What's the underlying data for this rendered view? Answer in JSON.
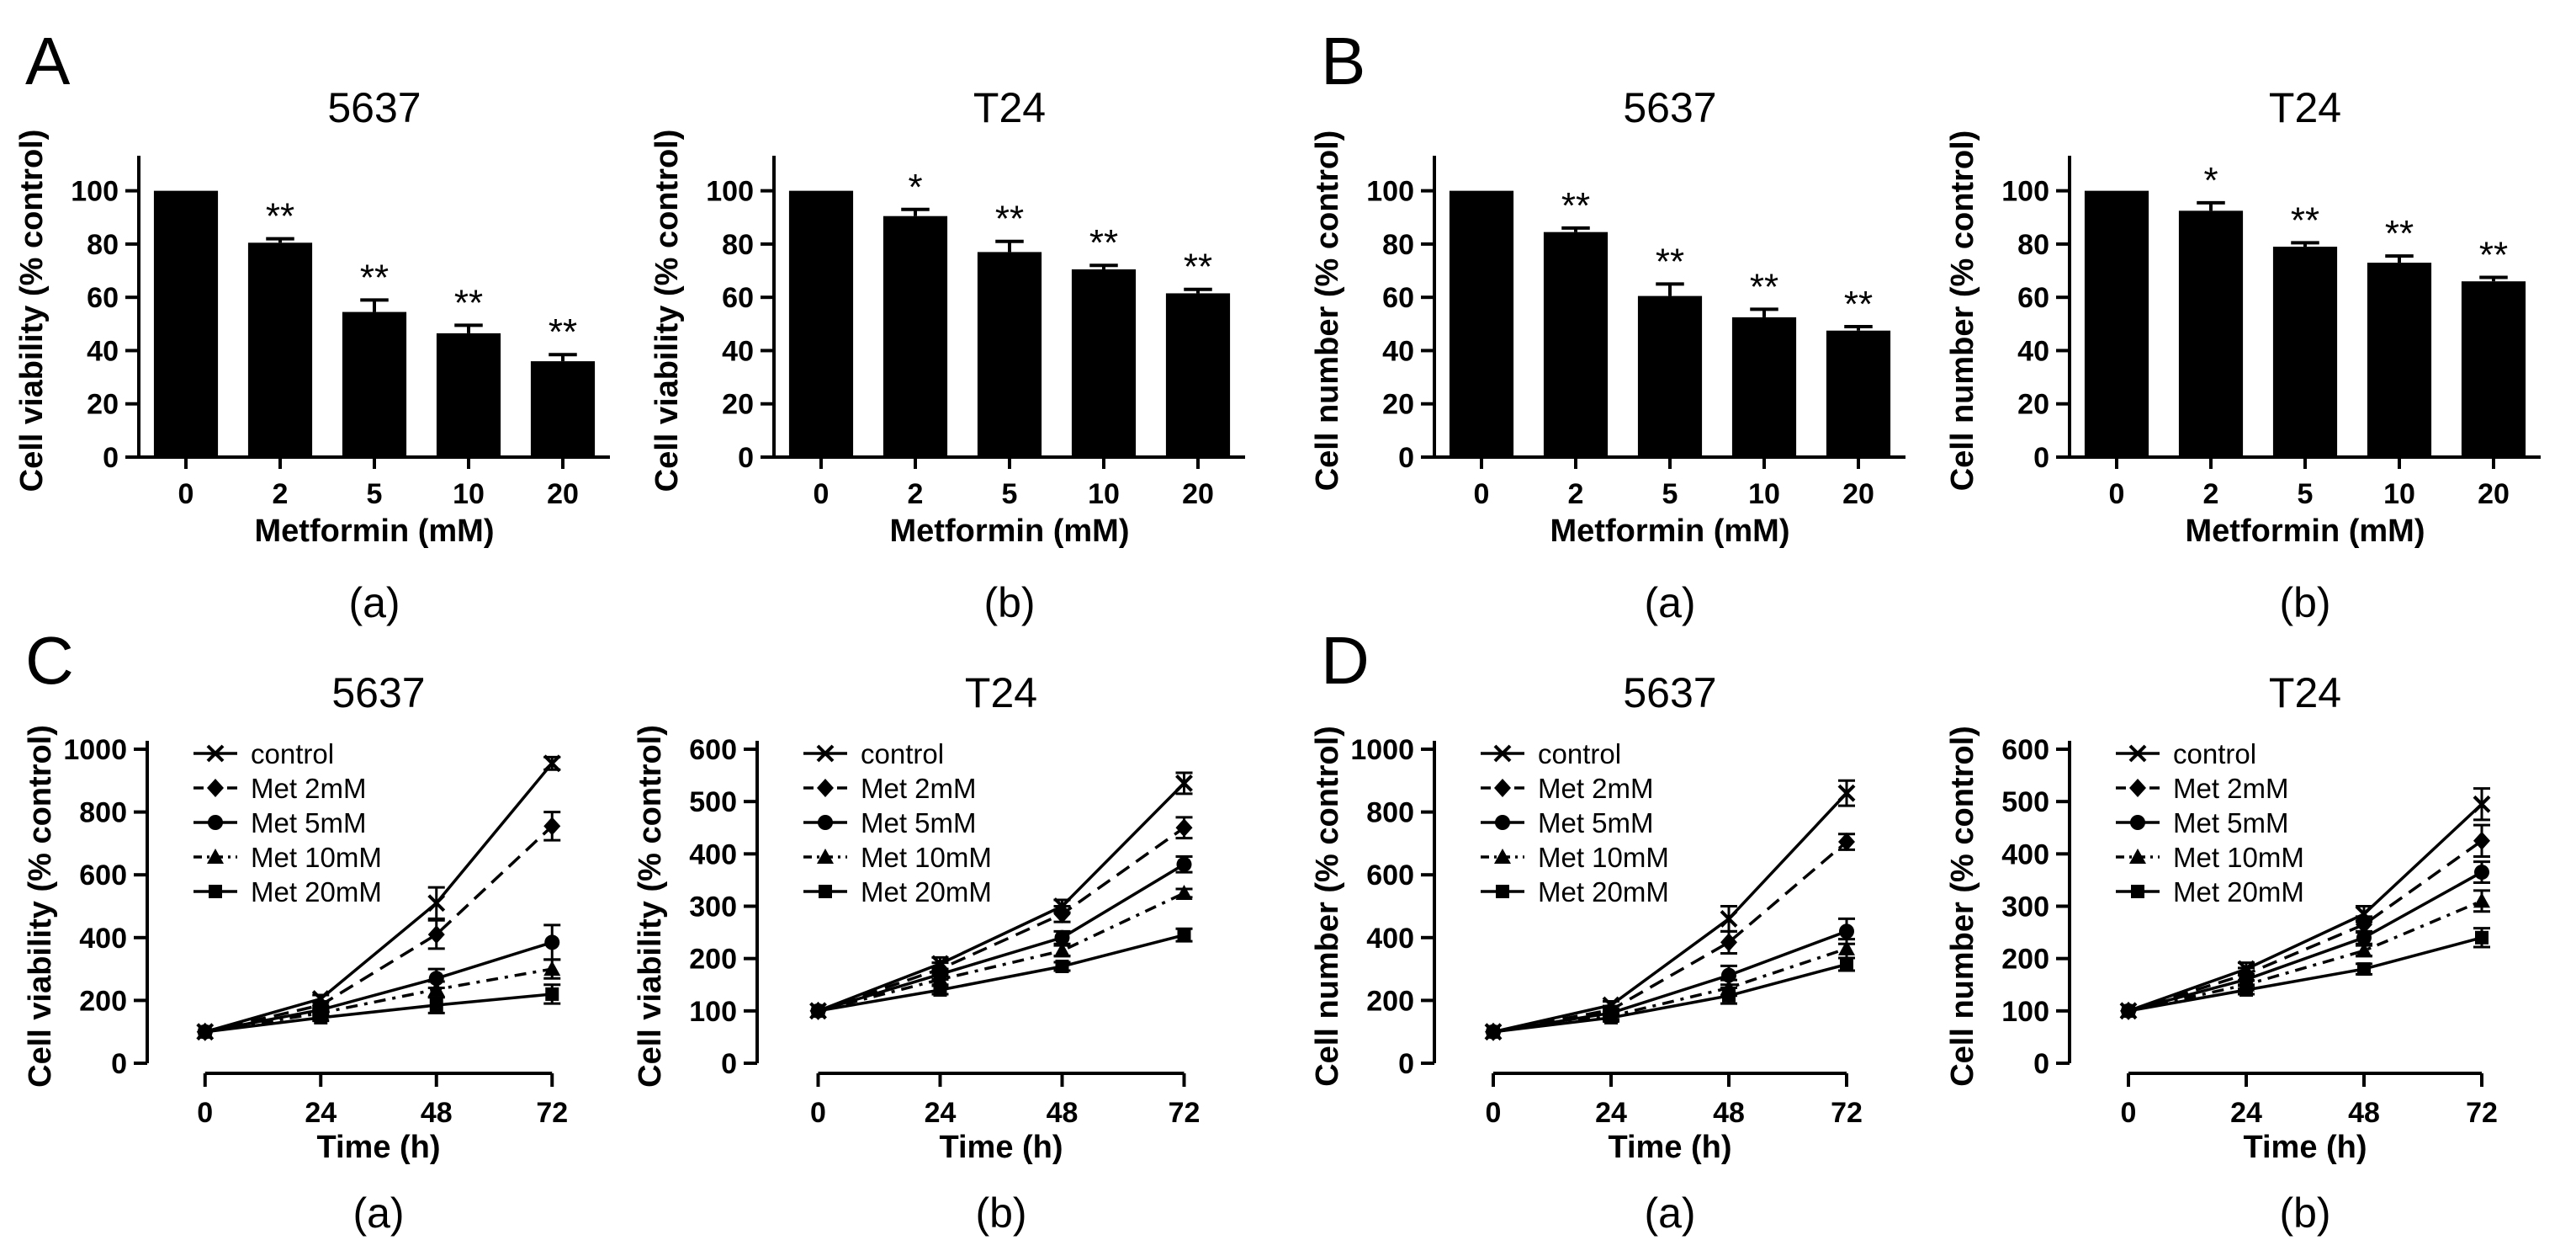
{
  "figure": {
    "panel_letters": [
      "A",
      "B",
      "C",
      "D"
    ],
    "colors": {
      "ink": "#000000",
      "background": "#ffffff"
    }
  },
  "chart_data": [
    {
      "id": "A-a",
      "panel": "A",
      "type": "bar",
      "title": "5637",
      "caption": "(a)",
      "xlabel": "Metformin (mM)",
      "ylabel": "Cell viability (% control)",
      "ylim": [
        0,
        110
      ],
      "yticks": [
        0,
        20,
        40,
        60,
        80,
        100
      ],
      "categories": [
        "0",
        "2",
        "5",
        "10",
        "20"
      ],
      "values": [
        100,
        80.5,
        54.5,
        46.5,
        36
      ],
      "errors": [
        0,
        1.5,
        4.5,
        3,
        2.5
      ],
      "significance": [
        "",
        "**",
        "**",
        "**",
        "**"
      ]
    },
    {
      "id": "A-b",
      "panel": "A",
      "type": "bar",
      "title": "T24",
      "caption": "(b)",
      "xlabel": "Metformin (mM)",
      "ylabel": "Cell viability (% control)",
      "ylim": [
        0,
        110
      ],
      "yticks": [
        0,
        20,
        40,
        60,
        80,
        100
      ],
      "categories": [
        "0",
        "2",
        "5",
        "10",
        "20"
      ],
      "values": [
        100,
        90.5,
        77,
        70.5,
        61.5
      ],
      "errors": [
        0,
        2.5,
        4,
        1.5,
        1.5
      ],
      "significance": [
        "",
        "*",
        "**",
        "**",
        "**"
      ]
    },
    {
      "id": "B-a",
      "panel": "B",
      "type": "bar",
      "title": "5637",
      "caption": "(a)",
      "xlabel": "Metformin (mM)",
      "ylabel": "Cell number (% control)",
      "ylim": [
        0,
        110
      ],
      "yticks": [
        0,
        20,
        40,
        60,
        80,
        100
      ],
      "categories": [
        "0",
        "2",
        "5",
        "10",
        "20"
      ],
      "values": [
        100,
        84.5,
        60.5,
        52.5,
        47.5
      ],
      "errors": [
        0,
        1.5,
        4.5,
        3,
        1.5
      ],
      "significance": [
        "",
        "**",
        "**",
        "**",
        "**"
      ]
    },
    {
      "id": "B-b",
      "panel": "B",
      "type": "bar",
      "title": "T24",
      "caption": "(b)",
      "xlabel": "Metformin (mM)",
      "ylabel": "Cell number (% control)",
      "ylim": [
        0,
        110
      ],
      "yticks": [
        0,
        20,
        40,
        60,
        80,
        100
      ],
      "categories": [
        "0",
        "2",
        "5",
        "10",
        "20"
      ],
      "values": [
        100,
        92.5,
        79,
        73,
        66
      ],
      "errors": [
        0,
        3,
        1.5,
        2.5,
        1.5
      ],
      "significance": [
        "",
        "*",
        "**",
        "**",
        "**"
      ]
    },
    {
      "id": "C-a",
      "panel": "C",
      "type": "line",
      "title": "5637",
      "caption": "(a)",
      "xlabel": "Time (h)",
      "ylabel": "Cell viability (% control)",
      "ylim": [
        0,
        1000
      ],
      "yticks": [
        0,
        200,
        400,
        600,
        800,
        1000
      ],
      "x": [
        0,
        24,
        48,
        72
      ],
      "xlim": [
        -12,
        84
      ],
      "series": [
        {
          "name": "control",
          "marker": "x",
          "dash": "solid",
          "values": [
            100,
            205,
            510,
            955
          ],
          "errors": [
            0,
            12,
            50,
            20
          ]
        },
        {
          "name": "Met 2mM",
          "marker": "diamond",
          "dash": "dashed",
          "values": [
            100,
            185,
            410,
            755
          ],
          "errors": [
            0,
            12,
            45,
            45
          ]
        },
        {
          "name": "Met 5mM",
          "marker": "circle",
          "dash": "solid",
          "values": [
            100,
            170,
            270,
            385
          ],
          "errors": [
            0,
            10,
            30,
            55
          ]
        },
        {
          "name": "Met 10mM",
          "marker": "triangle",
          "dash": "dashdot",
          "values": [
            100,
            160,
            235,
            300
          ],
          "errors": [
            0,
            10,
            25,
            30
          ]
        },
        {
          "name": "Met 20mM",
          "marker": "square",
          "dash": "solid",
          "values": [
            100,
            145,
            185,
            220
          ],
          "errors": [
            0,
            10,
            25,
            30
          ]
        }
      ]
    },
    {
      "id": "C-b",
      "panel": "C",
      "type": "line",
      "title": "T24",
      "caption": "(b)",
      "xlabel": "Time (h)",
      "ylabel": "Cell viability (% control)",
      "ylim": [
        0,
        600
      ],
      "yticks": [
        0,
        100,
        200,
        300,
        400,
        500,
        600
      ],
      "x": [
        0,
        24,
        48,
        72
      ],
      "xlim": [
        -12,
        84
      ],
      "series": [
        {
          "name": "control",
          "marker": "x",
          "dash": "solid",
          "values": [
            100,
            190,
            300,
            535
          ],
          "errors": [
            0,
            12,
            12,
            20
          ]
        },
        {
          "name": "Met 2mM",
          "marker": "diamond",
          "dash": "dashed",
          "values": [
            100,
            180,
            285,
            450
          ],
          "errors": [
            0,
            12,
            15,
            20
          ]
        },
        {
          "name": "Met 5mM",
          "marker": "circle",
          "dash": "solid",
          "values": [
            100,
            170,
            240,
            380
          ],
          "errors": [
            0,
            10,
            12,
            15
          ]
        },
        {
          "name": "Met 10mM",
          "marker": "triangle",
          "dash": "dashdot",
          "values": [
            100,
            160,
            215,
            325
          ],
          "errors": [
            0,
            10,
            10,
            8
          ]
        },
        {
          "name": "Met 20mM",
          "marker": "square",
          "dash": "solid",
          "values": [
            100,
            140,
            185,
            245
          ],
          "errors": [
            0,
            8,
            8,
            12
          ]
        }
      ]
    },
    {
      "id": "D-a",
      "panel": "D",
      "type": "line",
      "title": "5637",
      "caption": "(a)",
      "xlabel": "Time (h)",
      "ylabel": "Cell number (% control)",
      "ylim": [
        0,
        1000
      ],
      "yticks": [
        0,
        200,
        400,
        600,
        800,
        1000
      ],
      "x": [
        0,
        24,
        48,
        72
      ],
      "xlim": [
        -12,
        84
      ],
      "series": [
        {
          "name": "control",
          "marker": "x",
          "dash": "solid",
          "values": [
            100,
            185,
            460,
            860
          ],
          "errors": [
            0,
            12,
            40,
            40
          ]
        },
        {
          "name": "Met 2mM",
          "marker": "diamond",
          "dash": "dashed",
          "values": [
            100,
            170,
            385,
            705
          ],
          "errors": [
            0,
            12,
            35,
            25
          ]
        },
        {
          "name": "Met 5mM",
          "marker": "circle",
          "dash": "solid",
          "values": [
            100,
            160,
            280,
            420
          ],
          "errors": [
            0,
            10,
            30,
            40
          ]
        },
        {
          "name": "Met 10mM",
          "marker": "triangle",
          "dash": "dashdot",
          "values": [
            100,
            150,
            240,
            365
          ],
          "errors": [
            0,
            10,
            25,
            30
          ]
        },
        {
          "name": "Met 20mM",
          "marker": "square",
          "dash": "solid",
          "values": [
            100,
            145,
            215,
            315
          ],
          "errors": [
            0,
            10,
            25,
            20
          ]
        }
      ]
    },
    {
      "id": "D-b",
      "panel": "D",
      "type": "line",
      "title": "T24",
      "caption": "(b)",
      "xlabel": "Time (h)",
      "ylabel": "Cell number (% control)",
      "ylim": [
        0,
        600
      ],
      "yticks": [
        0,
        100,
        200,
        300,
        400,
        500,
        600
      ],
      "x": [
        0,
        24,
        48,
        72
      ],
      "xlim": [
        -12,
        84
      ],
      "series": [
        {
          "name": "control",
          "marker": "x",
          "dash": "solid",
          "values": [
            100,
            180,
            285,
            495
          ],
          "errors": [
            0,
            12,
            15,
            30
          ]
        },
        {
          "name": "Met 2mM",
          "marker": "diamond",
          "dash": "dashed",
          "values": [
            100,
            170,
            265,
            425
          ],
          "errors": [
            0,
            12,
            15,
            30
          ]
        },
        {
          "name": "Met 5mM",
          "marker": "circle",
          "dash": "solid",
          "values": [
            100,
            160,
            240,
            365
          ],
          "errors": [
            0,
            10,
            12,
            20
          ]
        },
        {
          "name": "Met 10mM",
          "marker": "triangle",
          "dash": "dashdot",
          "values": [
            100,
            150,
            215,
            310
          ],
          "errors": [
            0,
            8,
            10,
            20
          ]
        },
        {
          "name": "Met 20mM",
          "marker": "square",
          "dash": "solid",
          "values": [
            100,
            140,
            180,
            240
          ],
          "errors": [
            0,
            8,
            10,
            18
          ]
        }
      ]
    }
  ]
}
